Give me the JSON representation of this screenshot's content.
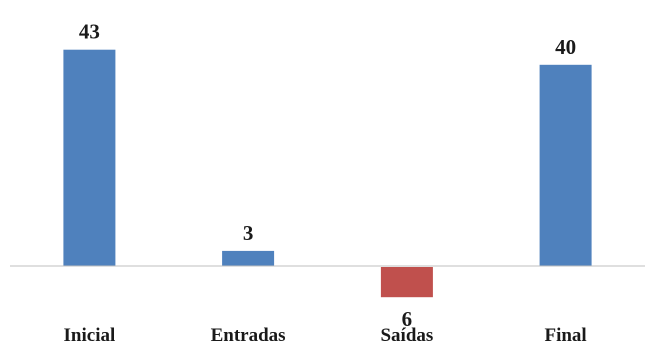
{
  "chart_data": {
    "type": "bar",
    "categories": [
      "Inicial",
      "Entradas",
      "Saídas",
      "Final"
    ],
    "values": [
      43,
      3,
      -6,
      40
    ],
    "data_labels": [
      "43",
      "3",
      "6",
      "40"
    ],
    "title": "",
    "xlabel": "",
    "ylabel": "",
    "ylim": [
      -6,
      43
    ],
    "grid": false,
    "legend": "none",
    "colors": {
      "positive": "#4f81bd",
      "negative": "#c0504d",
      "axis": "#bfbfbf"
    }
  }
}
